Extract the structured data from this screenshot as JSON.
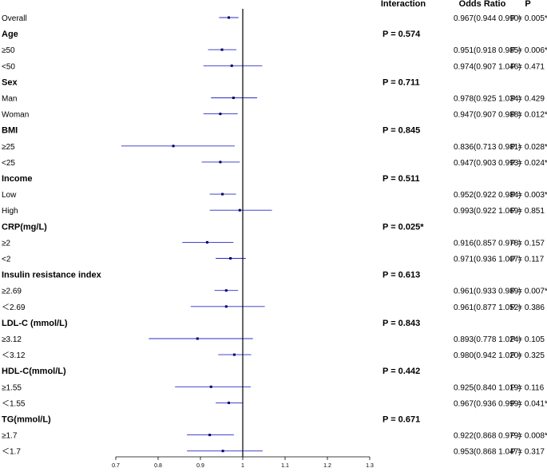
{
  "chart_data": {
    "type": "forest",
    "headers": {
      "interaction": "Interaction",
      "odds_ratio": "Odds Ratio",
      "p": "P"
    },
    "reference_line": 1,
    "xlim": [
      0.7,
      1.3
    ],
    "xticks": [
      "0.7",
      "0.8",
      "0.9",
      "1",
      "1.1",
      "1.2",
      "1.3"
    ],
    "rows": [
      {
        "type": "sub",
        "label": "Overall",
        "or": 0.967,
        "lo": 0.944,
        "hi": 0.99,
        "or_text": "0.967(0.944 0.990)",
        "p_text": "P = 0.005*"
      },
      {
        "type": "group",
        "label": "Age",
        "interaction": "P = 0.574"
      },
      {
        "type": "sub",
        "label": "≥50",
        "or": 0.951,
        "lo": 0.918,
        "hi": 0.985,
        "or_text": "0.951(0.918 0.985)",
        "p_text": "P = 0.006*"
      },
      {
        "type": "sub",
        "label": "<50",
        "or": 0.974,
        "lo": 0.907,
        "hi": 1.046,
        "or_text": "0.974(0.907 1.046)",
        "p_text": "P = 0.471"
      },
      {
        "type": "group",
        "label": "Sex",
        "interaction": "P = 0.711"
      },
      {
        "type": "sub",
        "label": "Man",
        "or": 0.978,
        "lo": 0.925,
        "hi": 1.034,
        "or_text": "0.978(0.925 1.034)",
        "p_text": "P = 0.429"
      },
      {
        "type": "sub",
        "label": "Woman",
        "or": 0.947,
        "lo": 0.907,
        "hi": 0.988,
        "or_text": "0.947(0.907 0.988)",
        "p_text": "P = 0.012*"
      },
      {
        "type": "group",
        "label": "BMI",
        "interaction": "P = 0.845"
      },
      {
        "type": "sub",
        "label": "≥25",
        "or": 0.836,
        "lo": 0.713,
        "hi": 0.981,
        "or_text": "0.836(0.713 0.981)",
        "p_text": "P = 0.028*"
      },
      {
        "type": "sub",
        "label": "<25",
        "or": 0.947,
        "lo": 0.903,
        "hi": 0.993,
        "or_text": "0.947(0.903 0.993)",
        "p_text": "P = 0.024*"
      },
      {
        "type": "group",
        "label": "Income",
        "interaction": "P = 0.511"
      },
      {
        "type": "sub",
        "label": "Low",
        "or": 0.952,
        "lo": 0.922,
        "hi": 0.984,
        "or_text": "0.952(0.922 0.984)",
        "p_text": "P = 0.003*"
      },
      {
        "type": "sub",
        "label": "High",
        "or": 0.993,
        "lo": 0.922,
        "hi": 1.069,
        "or_text": "0.993(0.922 1.069)",
        "p_text": "P = 0.851"
      },
      {
        "type": "group",
        "label": "CRP(mg/L)",
        "interaction": "P = 0.025*"
      },
      {
        "type": "sub",
        "label": "≥2",
        "or": 0.916,
        "lo": 0.857,
        "hi": 0.978,
        "or_text": "0.916(0.857 0.978)",
        "p_text": "P = 0.157"
      },
      {
        "type": "sub",
        "label": "<2",
        "or": 0.971,
        "lo": 0.936,
        "hi": 1.007,
        "or_text": "0.971(0.936 1.007)",
        "p_text": "P = 0.117"
      },
      {
        "type": "group",
        "label": "Insulin resistance index",
        "interaction": "P = 0.613"
      },
      {
        "type": "sub",
        "label": "≥2.69",
        "or": 0.961,
        "lo": 0.933,
        "hi": 0.989,
        "or_text": "0.961(0.933 0.989)",
        "p_text": "P = 0.007*"
      },
      {
        "type": "sub",
        "label": "＜2.69",
        "or": 0.961,
        "lo": 0.877,
        "hi": 1.052,
        "or_text": "0.961(0.877 1.052)",
        "p_text": "P = 0.386"
      },
      {
        "type": "group",
        "label": "LDL-C (mmol/L)",
        "interaction": "P = 0.843"
      },
      {
        "type": "sub",
        "label": "≥3.12",
        "or": 0.893,
        "lo": 0.778,
        "hi": 1.024,
        "or_text": "0.893(0.778 1.024)",
        "p_text": "P = 0.105"
      },
      {
        "type": "sub",
        "label": "＜3.12",
        "or": 0.98,
        "lo": 0.942,
        "hi": 1.02,
        "or_text": "0.980(0.942 1.020)",
        "p_text": "P = 0.325"
      },
      {
        "type": "group",
        "label": "HDL-C(mmol/L)",
        "interaction": "P = 0.442"
      },
      {
        "type": "sub",
        "label": "≥1.55",
        "or": 0.925,
        "lo": 0.84,
        "hi": 1.019,
        "or_text": "0.925(0.840 1.019)",
        "p_text": "P = 0.116"
      },
      {
        "type": "sub",
        "label": "＜1.55",
        "or": 0.967,
        "lo": 0.936,
        "hi": 0.999,
        "or_text": "0.967(0.936 0.999)",
        "p_text": "P = 0.041*"
      },
      {
        "type": "group",
        "label": "TG(mmol/L)",
        "interaction": "P = 0.671"
      },
      {
        "type": "sub",
        "label": "≥1.7",
        "or": 0.922,
        "lo": 0.868,
        "hi": 0.979,
        "or_text": "0.922(0.868 0.979)",
        "p_text": "P = 0.008*"
      },
      {
        "type": "sub",
        "label": "＜1.7",
        "or": 0.953,
        "lo": 0.868,
        "hi": 1.047,
        "or_text": "0.953(0.868 1.047)",
        "p_text": "P = 0.317"
      }
    ],
    "colors": {
      "ci": "#2b2bc7",
      "point": "#000066",
      "axis": "#000000"
    }
  }
}
